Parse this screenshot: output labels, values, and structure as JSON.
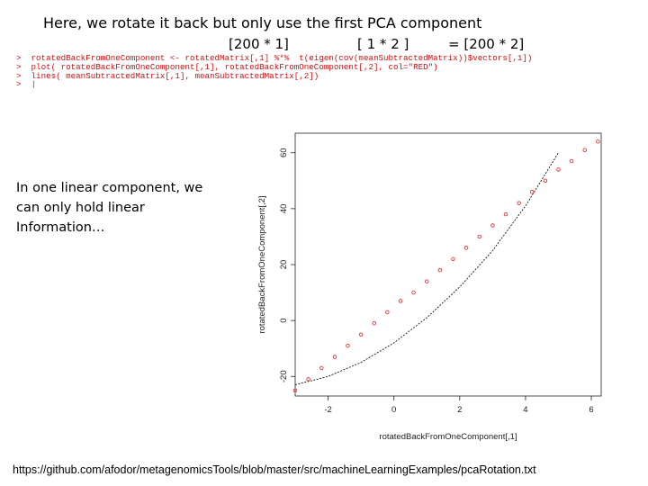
{
  "slide": {
    "title": "Here, we rotate it back but only use the first PCA component",
    "dim1": "[200 * 1]",
    "dim2": "[ 1 * 2 ]",
    "dim3": "= [200 * 2]",
    "code_lines": [
      ">  rotatedBackFromOneComponent <- rotatedMatrix[,1] %*%  t(eigen(cov(meanSubtractedMatrix))$vectors[,1])",
      ">  plot( rotatedBackFromOneComponent[,1], rotatedBackFromOneComponent[,2], col=\"RED\")",
      ">  lines( meanSubtractedMatrix[,1], meanSubtractedMatrix[,2])",
      ">  |"
    ],
    "caption": "In one linear component, we can only hold linear Information…",
    "url": "https://github.com/afodor/metagenomicsTools/blob/master/src/machineLearningExamples/pcaRotation.txt"
  },
  "chart_data": {
    "type": "scatter",
    "xlabel": "rotatedBackFromOneComponent[,1]",
    "ylabel": "rotatedBackFromOneComponent[,2]",
    "x_ticks": [
      "-2",
      "0",
      "2",
      "4",
      "6"
    ],
    "y_ticks": [
      "-20",
      "0",
      "20",
      "40",
      "60"
    ],
    "xlim": [
      -3,
      6.3
    ],
    "ylim": [
      -27,
      67
    ],
    "grid": false,
    "points_color": "#d42020",
    "line_color": "#111111",
    "series": [
      {
        "kind": "points",
        "x": [
          -3.0,
          -2.6,
          -2.2,
          -1.8,
          -1.4,
          -1.0,
          -0.6,
          -0.2,
          0.2,
          0.6,
          1.0,
          1.4,
          1.8,
          2.2,
          2.6,
          3.0,
          3.4,
          3.8,
          4.2,
          4.6,
          5.0,
          5.4,
          5.8,
          6.2
        ],
        "y": [
          -25,
          -21,
          -17,
          -13,
          -9,
          -5,
          -1,
          3,
          7,
          10,
          14,
          18,
          22,
          26,
          30,
          34,
          38,
          42,
          46,
          50,
          54,
          57,
          61,
          64
        ]
      },
      {
        "kind": "line",
        "x": [
          -3.0,
          -2.0,
          -1.0,
          0.0,
          1.0,
          2.0,
          3.0,
          4.0,
          5.0
        ],
        "y": [
          -23,
          -20,
          -15,
          -8,
          1,
          12,
          25,
          41,
          60
        ]
      }
    ]
  }
}
